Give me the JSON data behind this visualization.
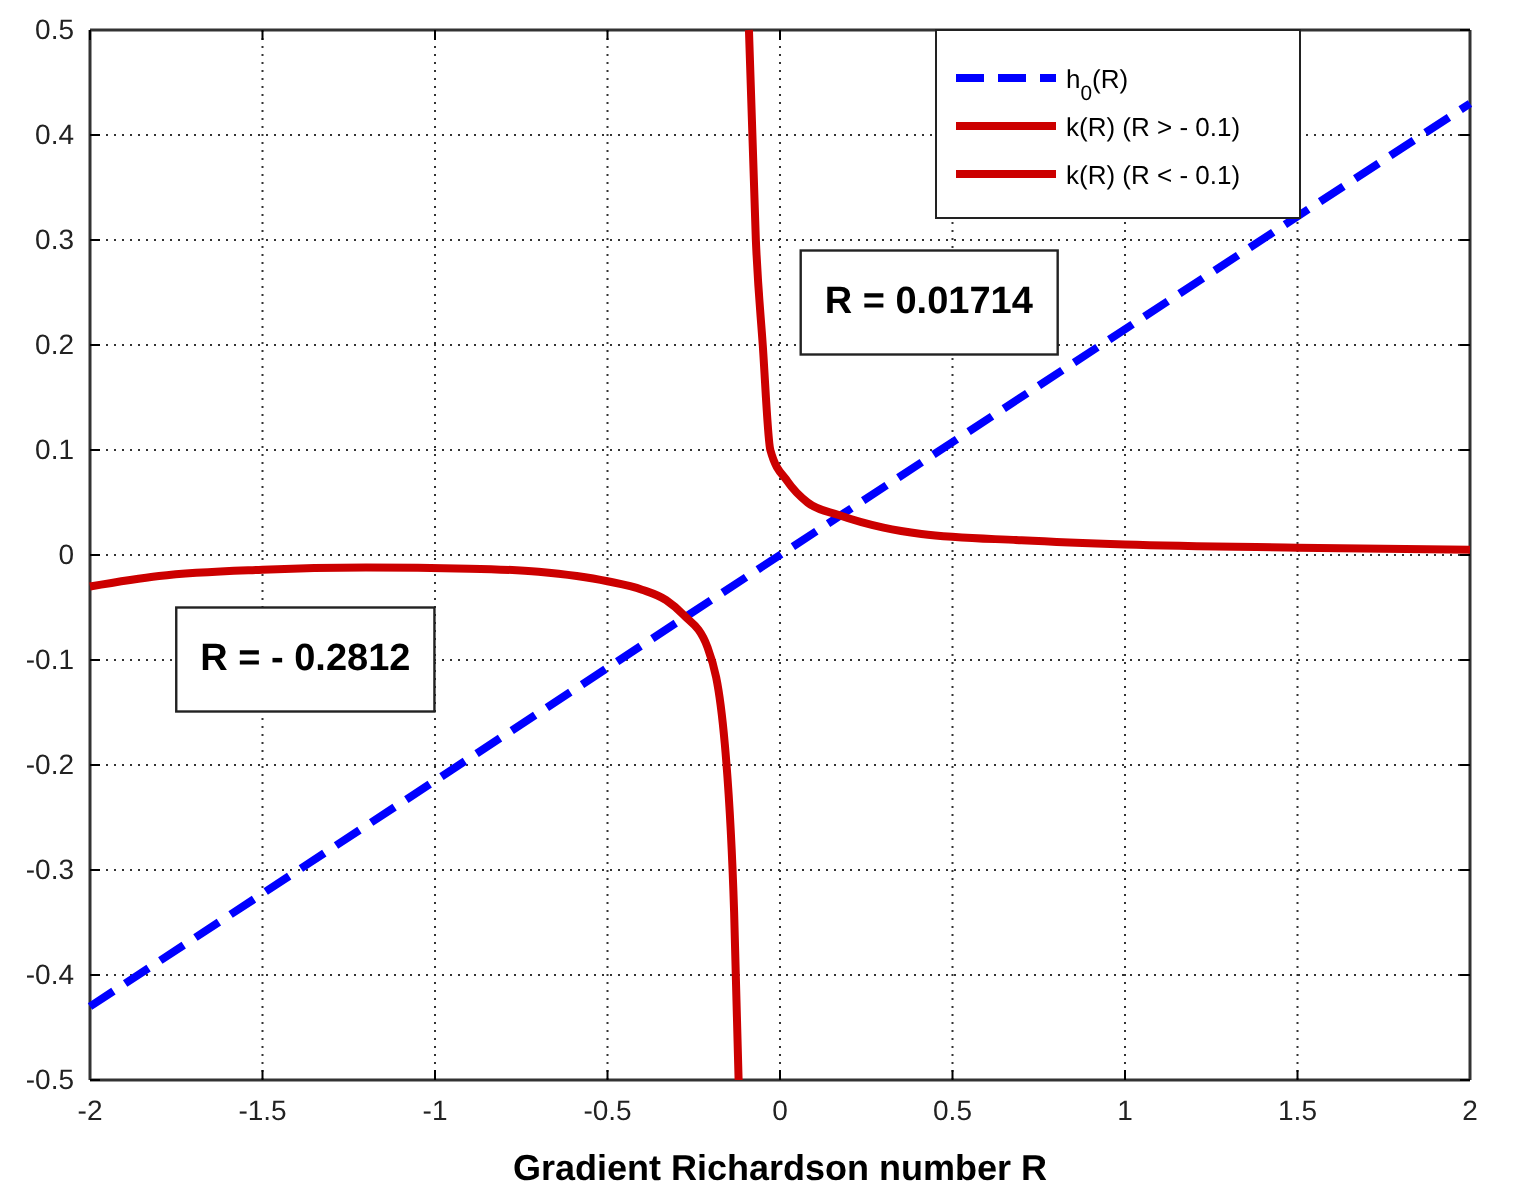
{
  "chart_data": {
    "type": "line",
    "xlabel": "Gradient Richardson number R",
    "xlim": [
      -2,
      2
    ],
    "xticks": [
      -2,
      -1.5,
      -1,
      -0.5,
      0,
      0.5,
      1,
      1.5,
      2
    ],
    "ylim": [
      -0.5,
      0.5
    ],
    "yticks": [
      -0.5,
      -0.4,
      -0.3,
      -0.2,
      -0.1,
      0,
      0.1,
      0.2,
      0.3,
      0.4,
      0.5
    ],
    "grid": true,
    "legend": "top right",
    "marker": "none",
    "annotations": [
      "R = 0.01714",
      "R = - 0.2812"
    ],
    "series": [
      {
        "name": "h$_{0}$(R)",
        "color": "#0000ff",
        "line_style": "dashed",
        "x": [
          -2,
          2
        ],
        "values": [
          -0.43,
          0.43
        ]
      },
      {
        "name": "k(R) (R > - 0.1)",
        "color": "#cc0000",
        "line_style": "solid",
        "x": [
          -0.09,
          -0.07,
          -0.05,
          -0.028,
          0.022,
          0.08,
          0.17,
          0.3,
          0.41,
          0.7,
          1.0,
          1.5,
          2
        ],
        "values": [
          0.5,
          0.3,
          0.2,
          0.1,
          0.07,
          0.05,
          0.038,
          0.026,
          0.02,
          0.014,
          0.01,
          0.007,
          0.005
        ]
      },
      {
        "name": "k(R) (R < - 0.1)",
        "color": "#cc0000",
        "line_style": "solid",
        "x": [
          -2,
          -1.8,
          -1.5,
          -1.2,
          -0.9,
          -0.7,
          -0.5,
          -0.4,
          -0.33,
          -0.28,
          -0.21,
          -0.16,
          -0.133,
          -0.12
        ],
        "values": [
          -0.03,
          -0.02,
          -0.014,
          -0.012,
          -0.013,
          -0.016,
          -0.025,
          -0.033,
          -0.043,
          -0.057,
          -0.088,
          -0.18,
          -0.34,
          -0.5
        ]
      }
    ]
  }
}
